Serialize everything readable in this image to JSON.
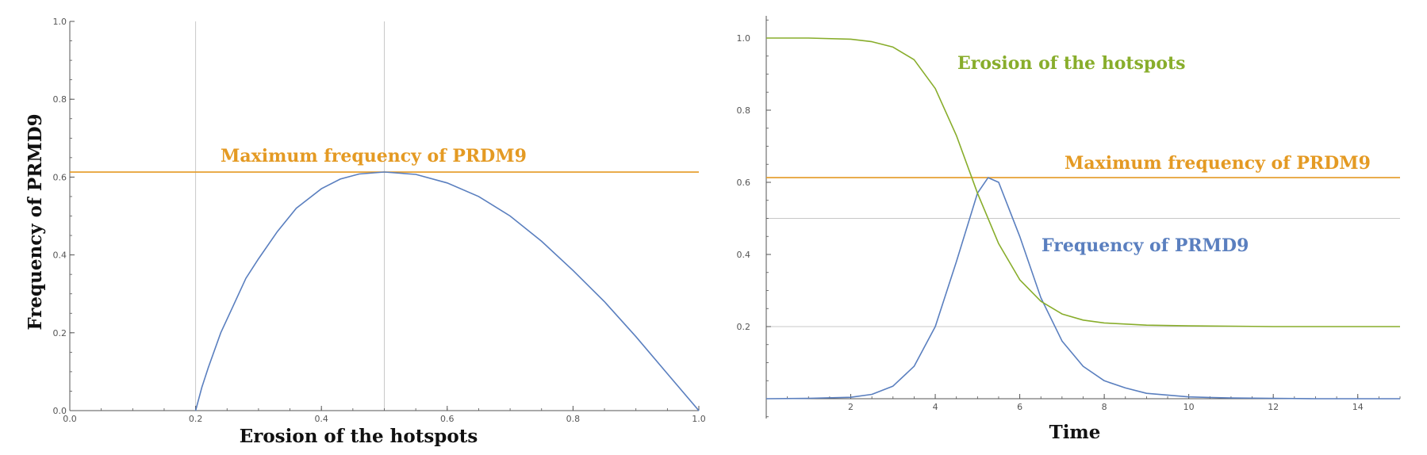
{
  "colors": {
    "blue": "#5a7fbf",
    "orange": "#e49a23",
    "green": "#88ad2b",
    "gray": "#c8c8c8",
    "axis": "#555555"
  },
  "chart_data": [
    {
      "type": "line",
      "xlabel": "Erosion of the hotspots",
      "ylabel": "Frequency of PRMD9",
      "xlim": [
        0,
        1
      ],
      "ylim": [
        0,
        1
      ],
      "xticks": [
        "0.0",
        "0.2",
        "0.4",
        "0.6",
        "0.8",
        "1.0"
      ],
      "yticks": [
        "0.0",
        "0.2",
        "0.4",
        "0.6",
        "0.8",
        "1.0"
      ],
      "vlines": [
        0.2,
        0.5
      ],
      "hline_value": 0.613,
      "annotation": "Maximum frequency of PRDM9",
      "series": [
        {
          "x": [
            0.2,
            0.21,
            0.22,
            0.24,
            0.26,
            0.28,
            0.3,
            0.33,
            0.36,
            0.4,
            0.43,
            0.46,
            0.5,
            0.55,
            0.6,
            0.65,
            0.7,
            0.75,
            0.8,
            0.85,
            0.9,
            0.95,
            1.0
          ],
          "y": [
            0.0,
            0.06,
            0.11,
            0.2,
            0.27,
            0.34,
            0.39,
            0.46,
            0.52,
            0.57,
            0.595,
            0.608,
            0.613,
            0.607,
            0.585,
            0.55,
            0.5,
            0.435,
            0.36,
            0.28,
            0.19,
            0.095,
            0.0
          ]
        }
      ]
    },
    {
      "type": "line",
      "xlabel": "Time",
      "xlim": [
        0,
        15
      ],
      "ylim": [
        0,
        1.05
      ],
      "xticks": [
        "2",
        "4",
        "6",
        "8",
        "10",
        "12",
        "14"
      ],
      "yticks": [
        "0.2",
        "0.4",
        "0.6",
        "0.8",
        "1.0"
      ],
      "hlines": [
        0.2,
        0.5
      ],
      "hline_value": 0.613,
      "annotations": {
        "max_freq": "Maximum frequency of PRDM9",
        "erosion": "Erosion of the hotspots",
        "frequency": "Frequency of PRMD9"
      },
      "series": [
        {
          "label": "Frequency of PRMD9",
          "x": [
            0,
            1,
            2,
            2.5,
            3,
            3.5,
            4,
            4.5,
            5,
            5.25,
            5.5,
            6,
            6.5,
            7,
            7.5,
            8,
            8.5,
            9,
            10,
            11,
            12,
            13,
            14,
            15
          ],
          "y": [
            0,
            0.001,
            0.004,
            0.012,
            0.035,
            0.09,
            0.2,
            0.38,
            0.57,
            0.613,
            0.6,
            0.45,
            0.28,
            0.16,
            0.09,
            0.05,
            0.03,
            0.015,
            0.005,
            0.002,
            0.001,
            0,
            0,
            0
          ]
        },
        {
          "label": "Erosion of the hotspots",
          "x": [
            0,
            1,
            2,
            2.5,
            3,
            3.5,
            4,
            4.5,
            5,
            5.5,
            6,
            6.5,
            7,
            7.5,
            8,
            9,
            10,
            11,
            12,
            13,
            14,
            15
          ],
          "y": [
            1.0,
            1.0,
            0.997,
            0.99,
            0.975,
            0.94,
            0.86,
            0.73,
            0.57,
            0.43,
            0.33,
            0.27,
            0.235,
            0.218,
            0.21,
            0.204,
            0.202,
            0.201,
            0.2,
            0.2,
            0.2,
            0.2
          ]
        }
      ]
    }
  ]
}
